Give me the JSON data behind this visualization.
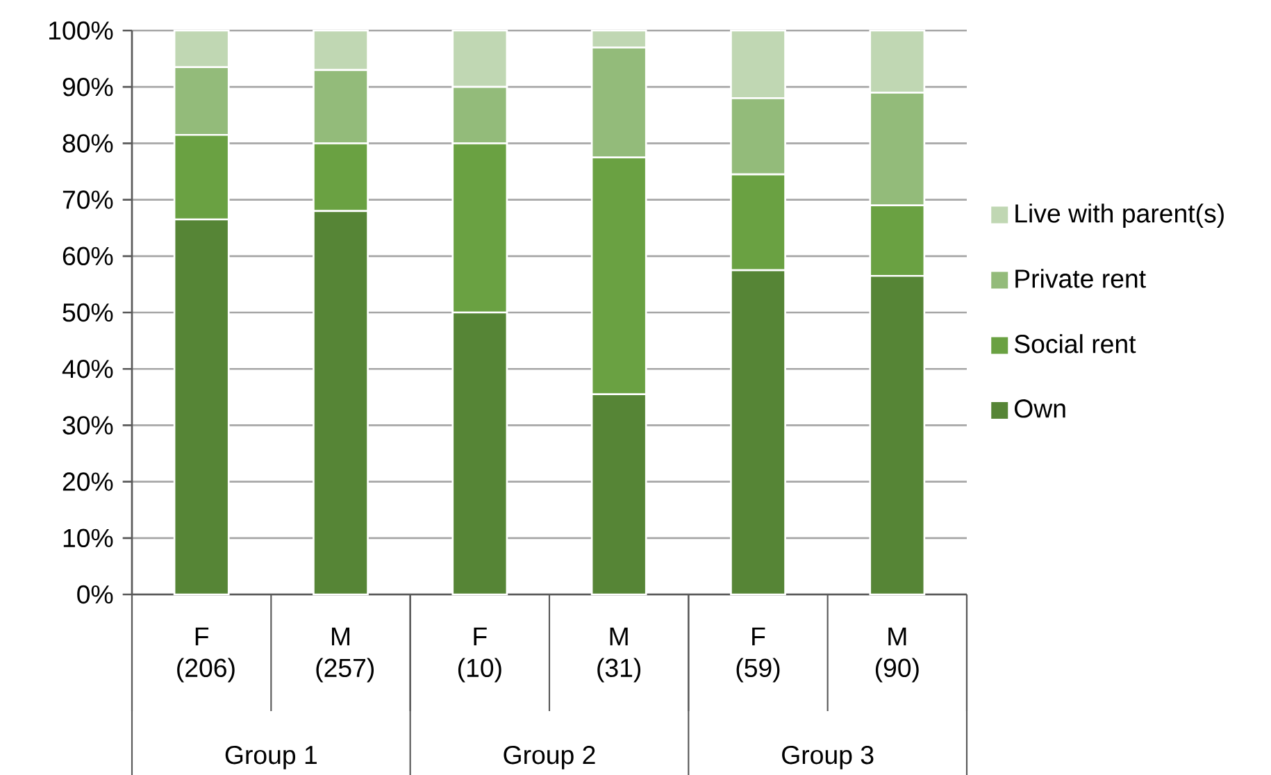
{
  "chart_data": {
    "type": "bar",
    "stacked": true,
    "categories": [
      "F (206)",
      "M (257)",
      "F (10)",
      "M (31)",
      "F (59)",
      "M (90)"
    ],
    "series": [
      {
        "name": "Own",
        "color": "#568536",
        "values": [
          66.5,
          68,
          50,
          35.5,
          57.5,
          56.5
        ]
      },
      {
        "name": "Social rent",
        "color": "#6aa142",
        "values": [
          15,
          12,
          30,
          42,
          17,
          12.5
        ]
      },
      {
        "name": "Private rent",
        "color": "#93bb7a",
        "values": [
          12,
          13,
          10,
          19.5,
          13.5,
          20
        ]
      },
      {
        "name": "Live with parent(s)",
        "color": "#c0d7b3",
        "values": [
          6.5,
          7,
          10,
          3,
          12,
          11
        ]
      }
    ],
    "ylim": [
      0,
      100
    ],
    "yticks": [
      {
        "value": 0,
        "label": "0%"
      },
      {
        "value": 10,
        "label": "10%"
      },
      {
        "value": 20,
        "label": "20%"
      },
      {
        "value": 30,
        "label": "30%"
      },
      {
        "value": 40,
        "label": "40%"
      },
      {
        "value": 50,
        "label": "50%"
      },
      {
        "value": 60,
        "label": "60%"
      },
      {
        "value": 70,
        "label": "70%"
      },
      {
        "value": 80,
        "label": "80%"
      },
      {
        "value": 90,
        "label": "90%"
      },
      {
        "value": 100,
        "label": "100%"
      }
    ],
    "grid": "y",
    "legend": "right",
    "annotations": [
      "Group 1",
      "Group 2",
      "Group 3"
    ]
  }
}
